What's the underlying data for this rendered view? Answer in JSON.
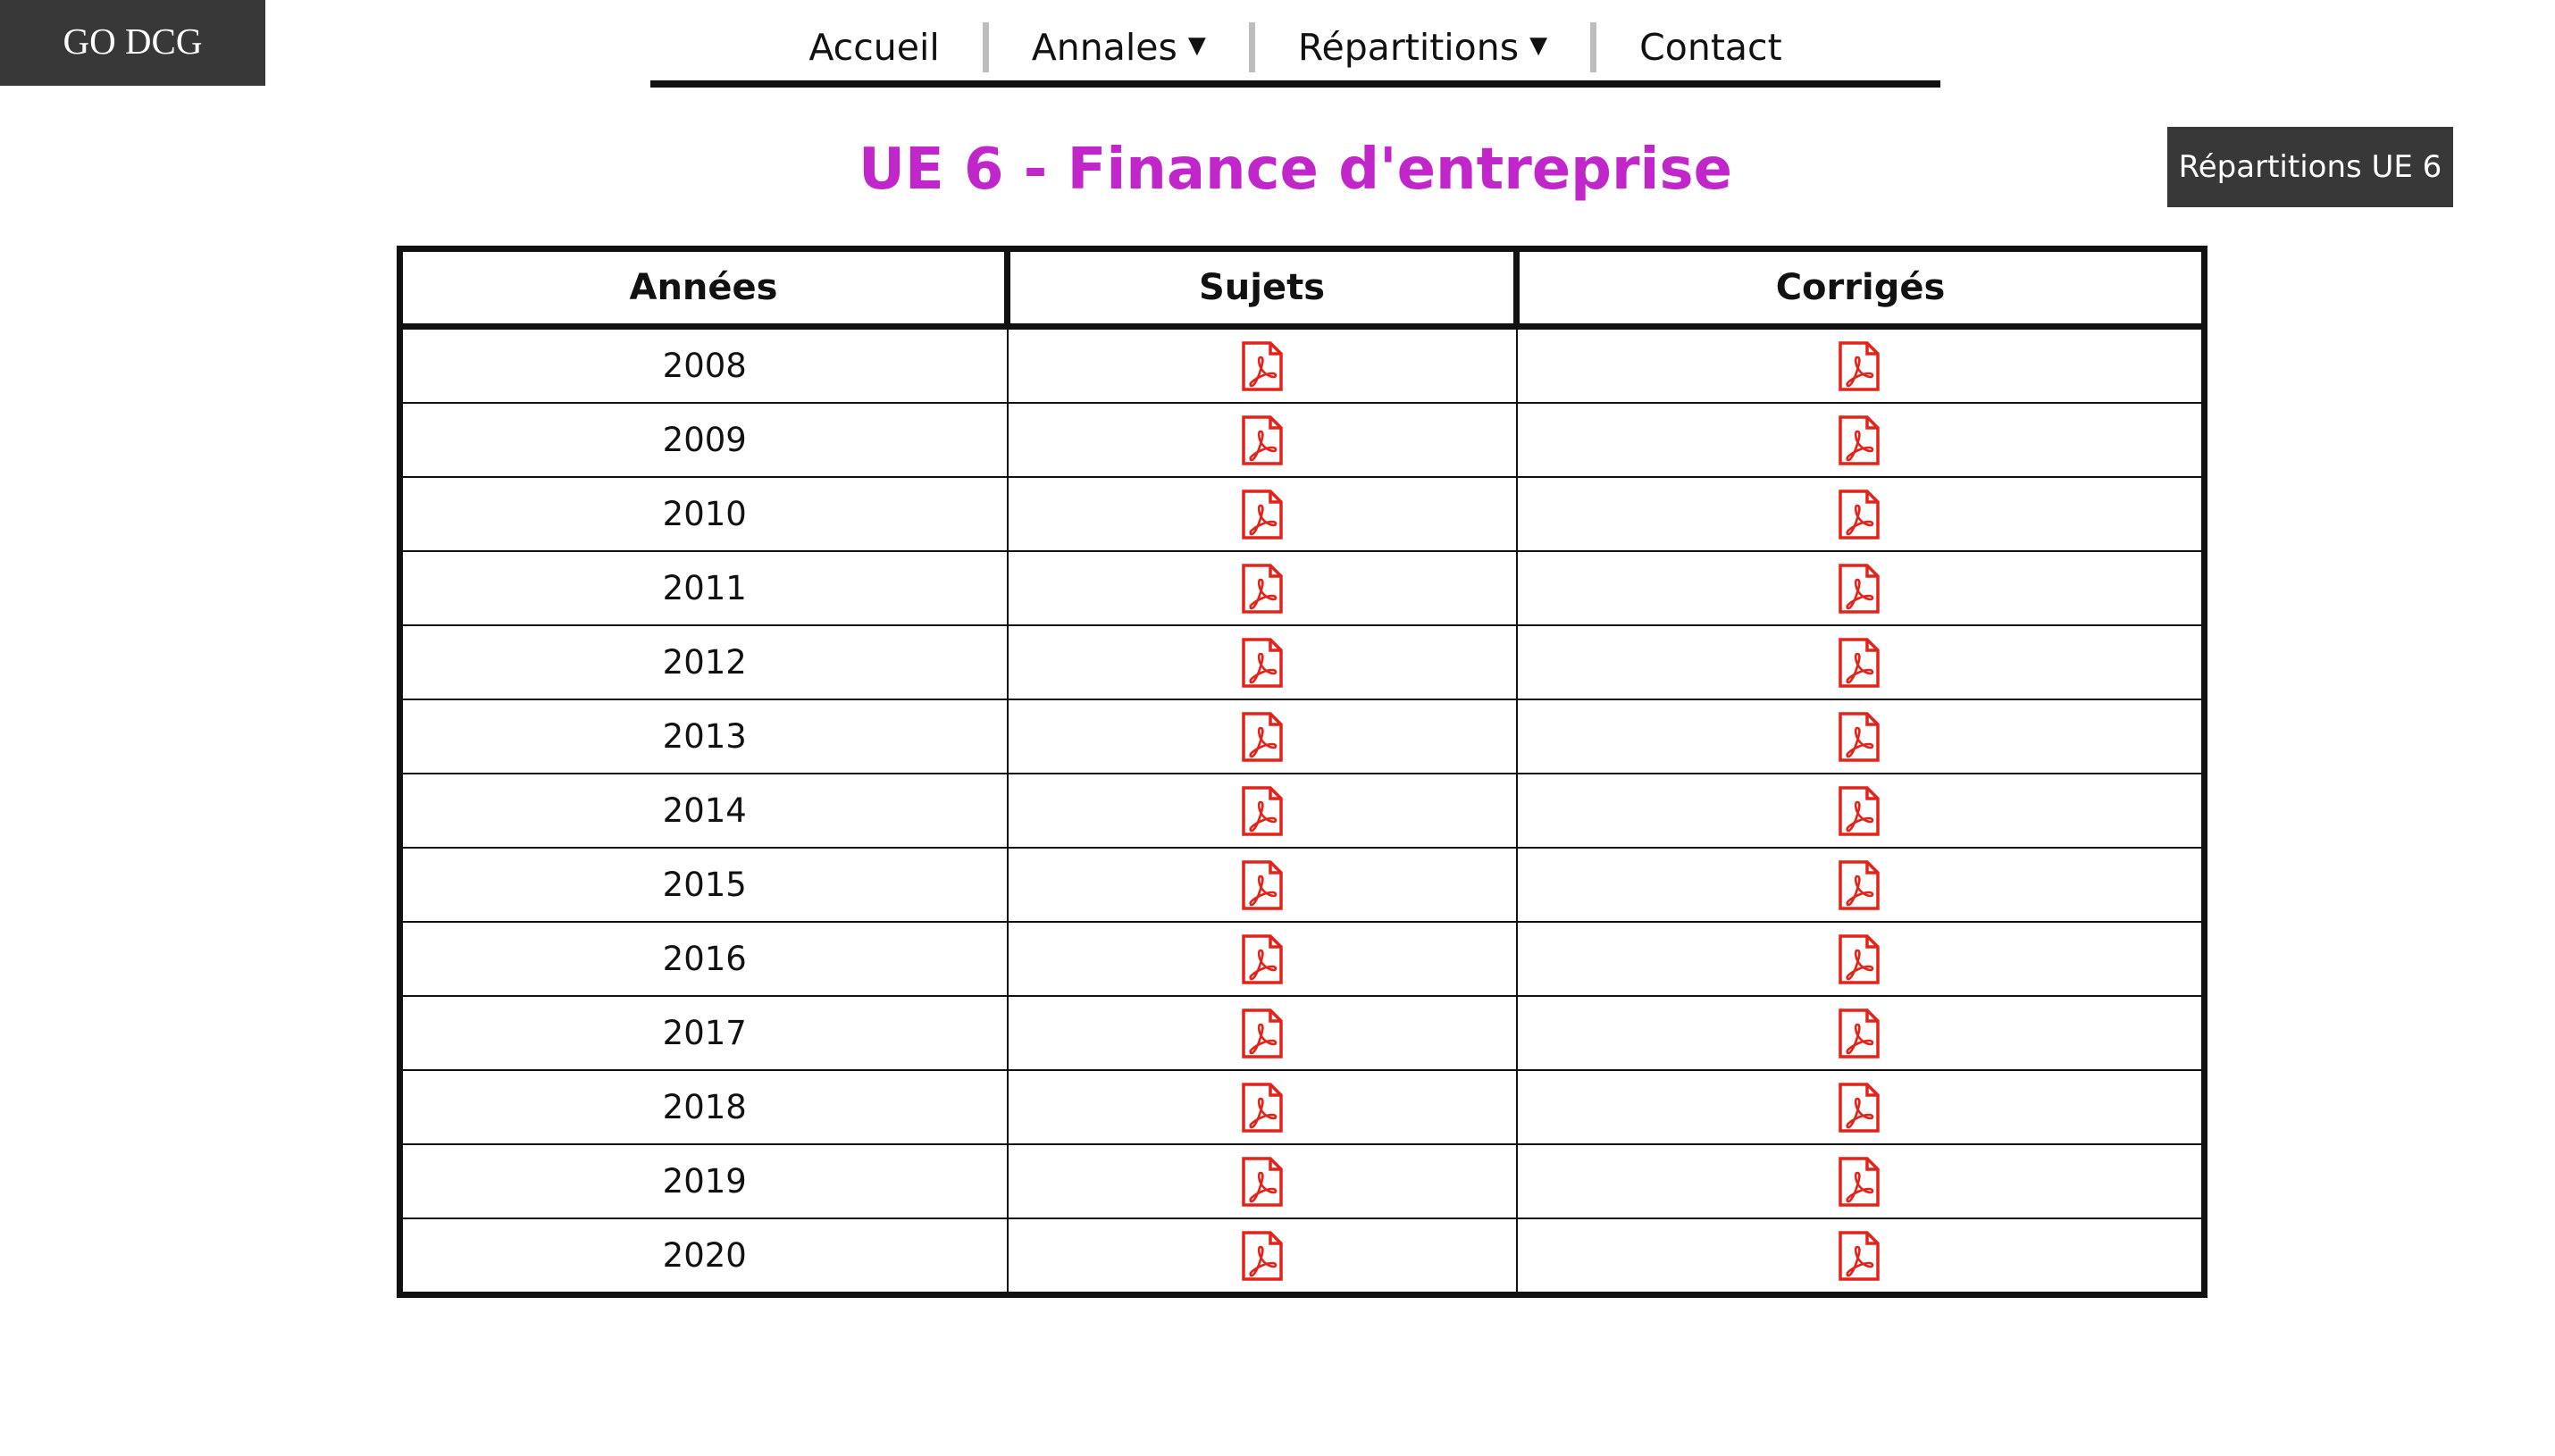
{
  "brand": {
    "logo": "GO DCG"
  },
  "nav": {
    "items": [
      {
        "label": "Accueil",
        "dropdown": false
      },
      {
        "label": "Annales",
        "dropdown": true
      },
      {
        "label": "Répartitions",
        "dropdown": true
      },
      {
        "label": "Contact",
        "dropdown": false
      }
    ],
    "caret_icon": "caret-down-icon"
  },
  "page": {
    "title": "UE 6 - Finance d'entreprise",
    "title_color": "#c026c9",
    "side_button": "Répartitions UE 6"
  },
  "table": {
    "headers": [
      "Années",
      "Sujets",
      "Corrigés"
    ],
    "icon": "pdf-file-icon",
    "icon_color": "#e2231a",
    "rows": [
      {
        "year": "2008"
      },
      {
        "year": "2009"
      },
      {
        "year": "2010"
      },
      {
        "year": "2011"
      },
      {
        "year": "2012"
      },
      {
        "year": "2013"
      },
      {
        "year": "2014"
      },
      {
        "year": "2015"
      },
      {
        "year": "2016"
      },
      {
        "year": "2017"
      },
      {
        "year": "2018"
      },
      {
        "year": "2019"
      },
      {
        "year": "2020"
      }
    ]
  },
  "colors": {
    "dark": "#383838",
    "accent": "#c026c9",
    "pdf": "#e2231a",
    "separator": "#bdbdbd"
  }
}
